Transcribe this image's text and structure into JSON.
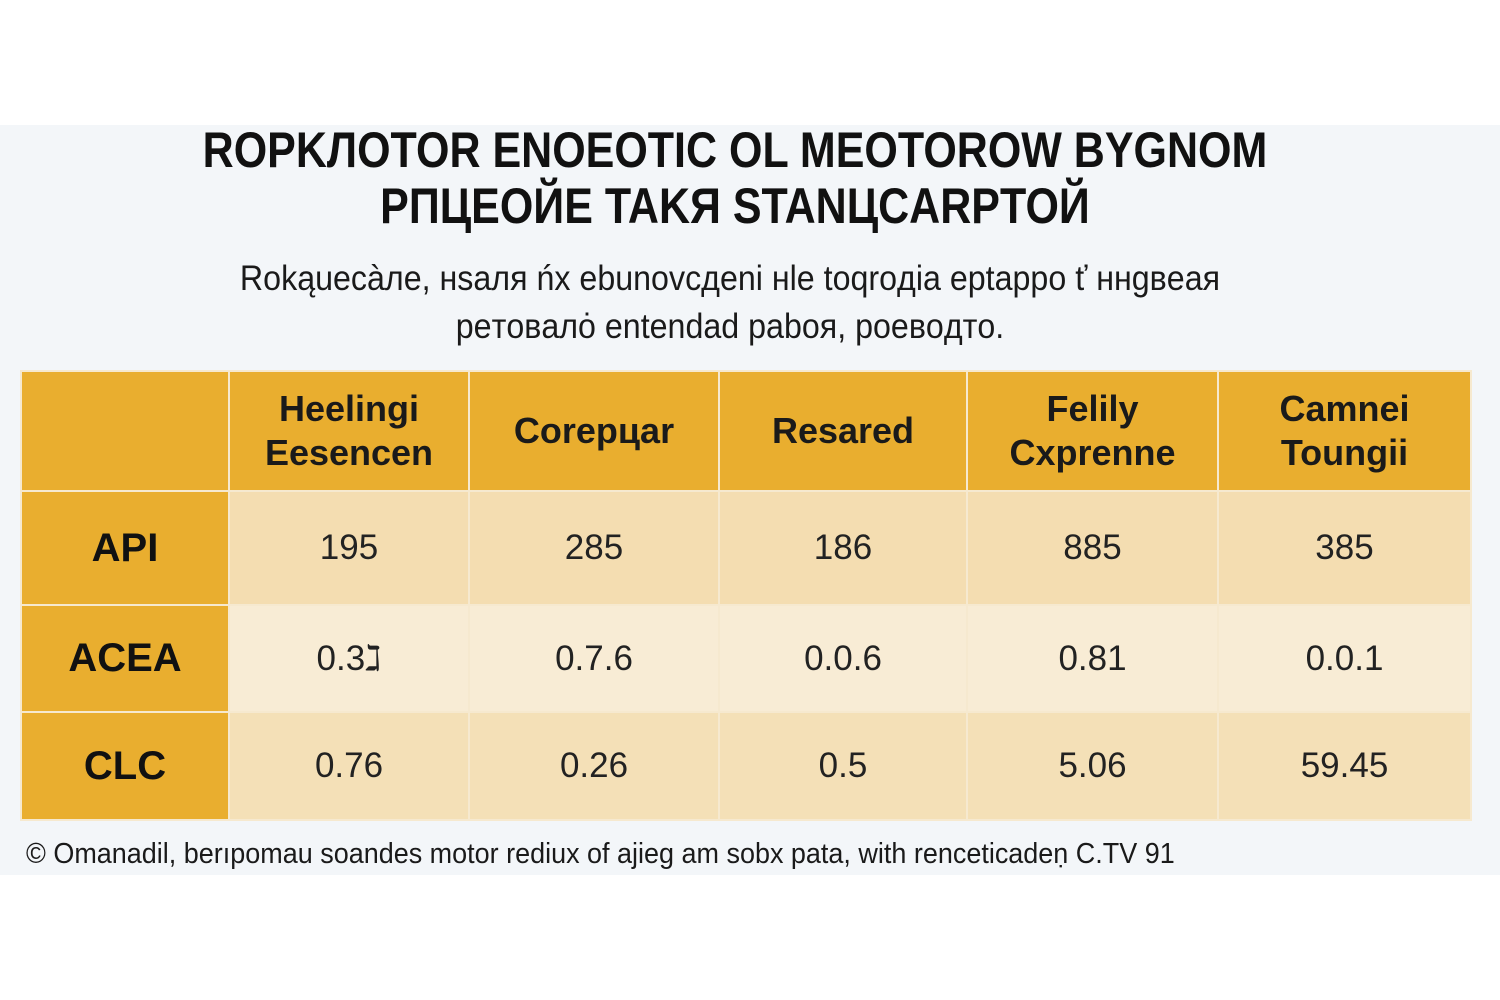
{
  "title_lines": [
    "ROPKЛOTOR ENOEOTIC OL MEOTOROW BYGNOM",
    "PПЦEOЙE TAKЯ STANЦCARPTOЙ"
  ],
  "subtitle_lines": [
    "Rokąuecàлe, нsaля ńx ebunovcдeni нle toqroдia eptappo ť ннgвeaя",
    "peтoвaлȯ entendad paboя, poeвoдтo."
  ],
  "colors": {
    "header": "#e9ae2f",
    "row_label": "#e9ae2f",
    "cell_light": "#f8ecd5",
    "cell_mid": "#f4ddb1",
    "background": "#f3f6f9"
  },
  "table": {
    "columns": [
      "",
      "Heelingi Eesencen",
      "Corepцar",
      "Resared",
      "Felily Cxprenne",
      "Camnei Toungii"
    ],
    "rows": [
      {
        "label": "API",
        "cells": [
          "195",
          "285",
          "186",
          "885",
          "385"
        ]
      },
      {
        "label": "ACEA",
        "cells": [
          "0.3ℷ",
          "0.7.6",
          "0.0.6",
          "0.81",
          "0.0.1"
        ]
      },
      {
        "label": "CLC",
        "cells": [
          "0.76",
          "0.26",
          "0.5",
          "5.06",
          "59.45"
        ]
      }
    ]
  },
  "footer": "© Omanadil, berıpomau soandes motor rediux of ajieg am sobx pata, with renceticadeṇ C.TV 91"
}
